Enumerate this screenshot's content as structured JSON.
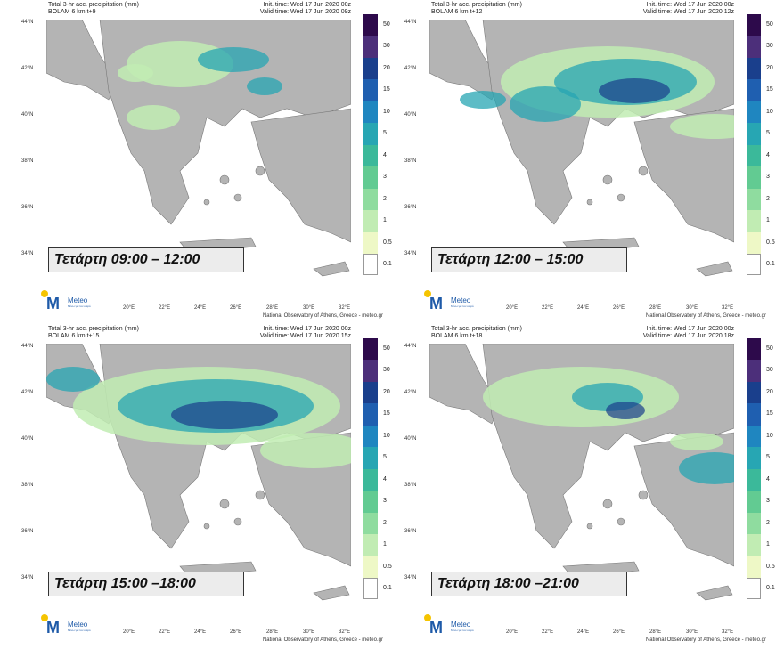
{
  "panels": [
    {
      "header_title": "Total 3-hr acc. precipitation (mm)",
      "header_model": "BOLAM 6 km t+9",
      "init_time": "Init. time: Wed 17 Jun 2020 00z",
      "valid_time": "Valid time: Wed 17 Jun 2020 09z",
      "period": "Τετάρτη 09:00 – 12:00"
    },
    {
      "header_title": "Total 3-hr acc. precipitation (mm)",
      "header_model": "BOLAM 6 km t+12",
      "init_time": "Init. time: Wed 17 Jun 2020 00z",
      "valid_time": "Valid time: Wed 17 Jun 2020 12z",
      "period": "Τετάρτη 12:00 – 15:00"
    },
    {
      "header_title": "Total 3-hr acc. precipitation (mm)",
      "header_model": "BOLAM 6 km t+15",
      "init_time": "Init. time: Wed 17 Jun 2020 00z",
      "valid_time": "Valid time: Wed 17 Jun 2020 15z",
      "period": "Τετάρτη 15:00 –18:00"
    },
    {
      "header_title": "Total 3-hr acc. precipitation (mm)",
      "header_model": "BOLAM 6 km t+18",
      "init_time": "Init. time: Wed 17 Jun 2020 00z",
      "valid_time": "Valid time: Wed 17 Jun 2020 18z",
      "period": "Τετάρτη 18:00 –21:00"
    }
  ],
  "lat_ticks": [
    "44°N",
    "42°N",
    "40°N",
    "38°N",
    "36°N",
    "34°N"
  ],
  "lon_ticks": [
    "20°E",
    "22°E",
    "24°E",
    "26°E",
    "28°E",
    "30°E",
    "32°E"
  ],
  "colorbar": {
    "labels": [
      "50",
      "30",
      "20",
      "15",
      "10",
      "5",
      "4",
      "3",
      "2",
      "1",
      "0.5",
      "0.1"
    ],
    "colors": [
      "#2d0a4b",
      "#4c2f7a",
      "#1a3f8c",
      "#1f5fb0",
      "#1f86c0",
      "#27a6b3",
      "#3bb99a",
      "#62cb92",
      "#8fdc9f",
      "#c1ecb3",
      "#eef8c6",
      "#ffffff"
    ]
  },
  "logo": {
    "name": "Meteo",
    "tagline": "Μένω για τον καιρό"
  },
  "credit": "National Observatory of Athens, Greece - meteo.gr",
  "colors": {
    "land": "#b4b4b4",
    "sea": "#ffffff",
    "border": "#7a7a7a"
  }
}
